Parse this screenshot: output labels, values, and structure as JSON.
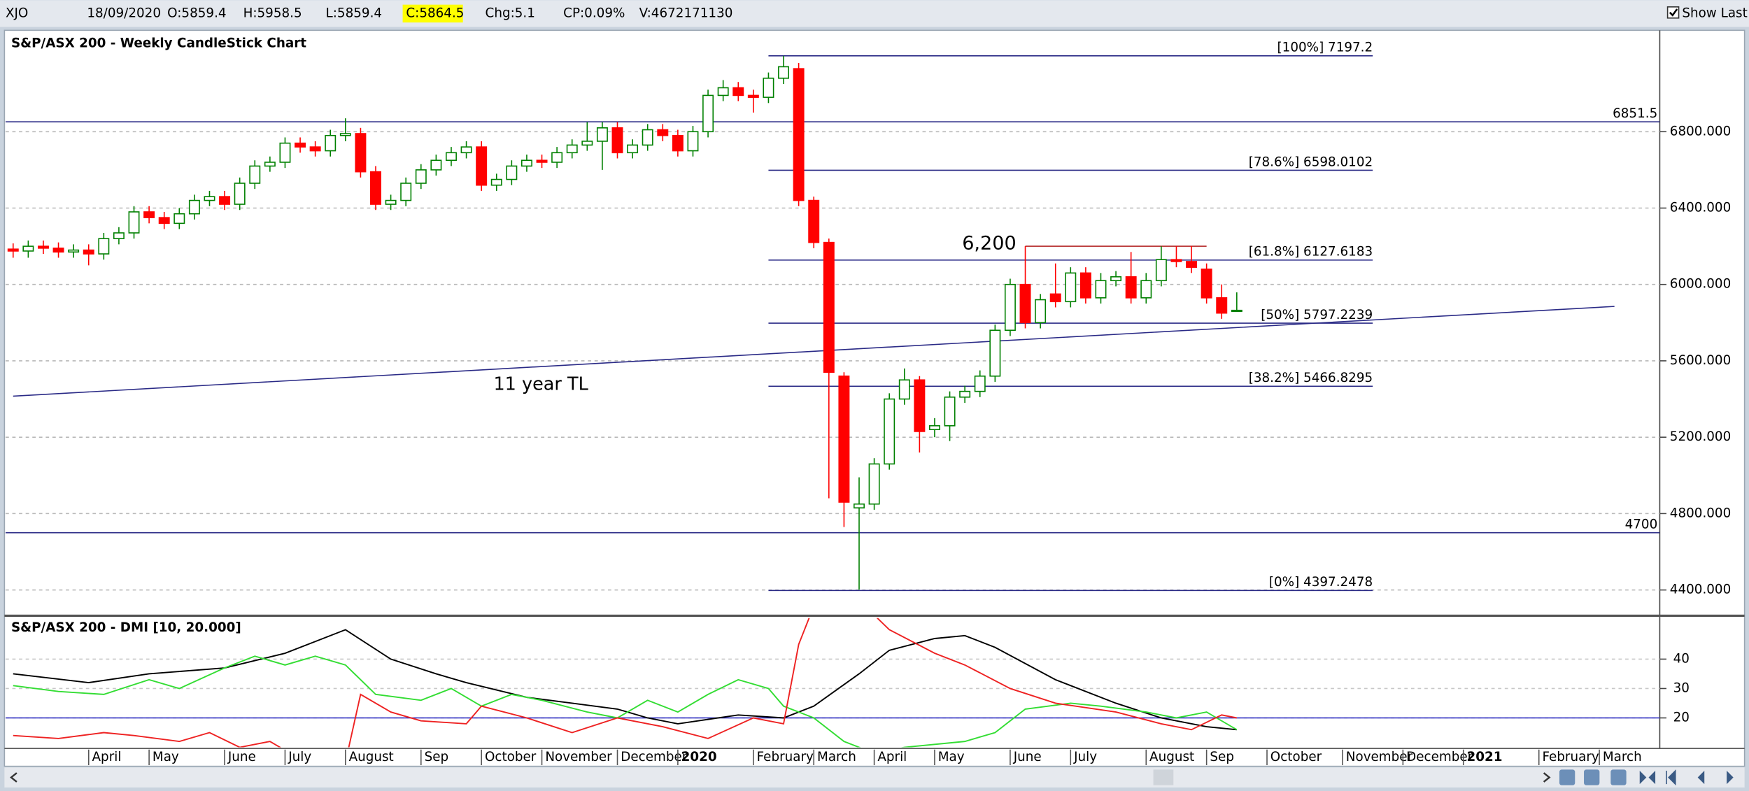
{
  "toolbar": {
    "symbol": "XJO",
    "date": "18/09/2020",
    "open": "O:5859.4",
    "high": "H:5958.5",
    "low": "L:5859.4",
    "close": "C:5864.5",
    "change": "Chg:5.1",
    "change_percent": "CP:0.09%",
    "volume": "V:4672171130",
    "show_last": "Show Last"
  },
  "chart_data": [
    {
      "type": "candlestick",
      "title": "S&P/ASX 200 - Weekly CandleStick Chart",
      "opens": [
        6185,
        6175,
        6200,
        6190,
        6170,
        6180,
        6160,
        6240,
        6270,
        6380,
        6350,
        6320,
        6370,
        6440,
        6460,
        6420,
        6530,
        6620,
        6640,
        6740,
        6720,
        6700,
        6780,
        6790,
        6590,
        6420,
        6440,
        6530,
        6600,
        6650,
        6690,
        6720,
        6520,
        6550,
        6620,
        6650,
        6640,
        6690,
        6730,
        6750,
        6820,
        6690,
        6730,
        6810,
        6780,
        6700,
        6800,
        6990,
        7030,
        6990,
        6980,
        7080,
        7130,
        6440,
        6220,
        5520,
        4830,
        4850,
        5060,
        5400,
        5500,
        5240,
        5260,
        5410,
        5440,
        5520,
        5760,
        6000,
        5800,
        5950,
        5910,
        6060,
        5930,
        6020,
        6040,
        5930,
        6020,
        6130,
        6120,
        6080,
        5930,
        5859.4
      ],
      "highs": [
        6215,
        6230,
        6230,
        6220,
        6210,
        6210,
        6270,
        6300,
        6410,
        6410,
        6380,
        6400,
        6470,
        6490,
        6490,
        6560,
        6650,
        6670,
        6770,
        6770,
        6750,
        6810,
        6870,
        6820,
        6620,
        6470,
        6560,
        6630,
        6680,
        6720,
        6750,
        6750,
        6580,
        6650,
        6680,
        6680,
        6720,
        6760,
        6850,
        6850,
        6850,
        6760,
        6840,
        6840,
        6810,
        6830,
        7020,
        7070,
        7060,
        7020,
        7110,
        7197.2,
        7160,
        6460,
        6240,
        5540,
        4990,
        5090,
        5430,
        5560,
        5520,
        5300,
        5440,
        5470,
        5550,
        5790,
        6030,
        6200,
        5950,
        6110,
        6090,
        6090,
        6060,
        6070,
        6170,
        6060,
        6200,
        6200,
        6200,
        6110,
        6000,
        5958.5
      ],
      "lows": [
        6140,
        6140,
        6160,
        6140,
        6140,
        6100,
        6130,
        6210,
        6240,
        6320,
        6290,
        6290,
        6340,
        6410,
        6390,
        6390,
        6500,
        6590,
        6610,
        6690,
        6670,
        6670,
        6750,
        6560,
        6390,
        6390,
        6410,
        6500,
        6570,
        6620,
        6660,
        6490,
        6490,
        6520,
        6590,
        6610,
        6610,
        6660,
        6700,
        6600,
        6660,
        6660,
        6700,
        6750,
        6670,
        6670,
        6770,
        6960,
        6960,
        6900,
        6950,
        7050,
        6410,
        6190,
        4880,
        4730,
        4402,
        4820,
        5030,
        5370,
        5120,
        5200,
        5180,
        5380,
        5410,
        5490,
        5730,
        5770,
        5770,
        5880,
        5880,
        5900,
        5900,
        5990,
        5900,
        5900,
        5990,
        6090,
        6060,
        5900,
        5820,
        5859.4
      ],
      "closes": [
        6175,
        6200,
        6190,
        6170,
        6180,
        6160,
        6240,
        6270,
        6380,
        6350,
        6320,
        6370,
        6440,
        6460,
        6420,
        6530,
        6620,
        6640,
        6740,
        6720,
        6700,
        6780,
        6790,
        6590,
        6420,
        6440,
        6530,
        6600,
        6650,
        6690,
        6720,
        6520,
        6550,
        6620,
        6650,
        6640,
        6690,
        6730,
        6750,
        6820,
        6690,
        6730,
        6810,
        6780,
        6700,
        6800,
        6990,
        7030,
        6990,
        6980,
        7080,
        7140,
        6440,
        6220,
        5540,
        4860,
        4850,
        5060,
        5400,
        5500,
        5230,
        5260,
        5410,
        5440,
        5520,
        5760,
        6000,
        5800,
        5920,
        5910,
        6060,
        5930,
        6020,
        6040,
        5930,
        6020,
        6130,
        6120,
        6090,
        5930,
        5850,
        5864.5
      ],
      "up_color": "#008000",
      "down_color": "#ff0000",
      "xlim": [
        -0.5,
        109
      ],
      "ylim": [
        4271,
        7325
      ],
      "yticks": [
        {
          "value": 4400,
          "label": "4400.000"
        },
        {
          "value": 4800,
          "label": "4800.000"
        },
        {
          "value": 5200,
          "label": "5200.000"
        },
        {
          "value": 5600,
          "label": "5600.000"
        },
        {
          "value": 6000,
          "label": "6000.000"
        },
        {
          "value": 6400,
          "label": "6400.000"
        },
        {
          "value": 6800,
          "label": "6800.000"
        }
      ],
      "grid": true,
      "horizontal_lines": [
        {
          "value": 6851.5,
          "label": "6851.5"
        },
        {
          "value": 4700,
          "label": "4700"
        }
      ],
      "fibonacci": {
        "x": [
          50,
          90
        ],
        "color": "#2a2a86",
        "levels": [
          {
            "value": 7197.2,
            "label": "[100%] 7197.2"
          },
          {
            "value": 6598.0102,
            "label": "[78.6%] 6598.0102"
          },
          {
            "value": 6127.6183,
            "label": "[61.8%] 6127.6183"
          },
          {
            "value": 5797.2239,
            "label": "[50%] 5797.2239"
          },
          {
            "value": 5466.8295,
            "label": "[38.2%] 5466.8295"
          },
          {
            "value": 4397.2478,
            "label": "[0%] 4397.2478"
          }
        ]
      },
      "resistance": {
        "value": 6200,
        "label": "6,200",
        "x": [
          67,
          79
        ],
        "color": "#b22222"
      },
      "trendline": {
        "label": "11 year TL",
        "x": [
          0,
          106
        ],
        "values": [
          5415,
          5885
        ],
        "color": "#2a2a86"
      }
    },
    {
      "type": "line",
      "title": "S&P/ASX 200 - DMI [10, 20.000]",
      "xlim": [
        -0.5,
        109
      ],
      "ylim": [
        10,
        54
      ],
      "yticks": [
        20,
        30,
        40
      ],
      "grid": true,
      "reference_line": 20,
      "reference_color": "#2020c0",
      "series": [
        {
          "color": "#000000",
          "x": [
            0,
            5,
            9,
            14,
            18,
            20,
            22,
            25,
            28,
            30,
            34,
            37,
            40,
            42,
            44,
            48,
            51,
            53,
            56,
            58,
            61,
            63,
            65,
            69,
            73,
            76,
            79,
            81
          ],
          "values": [
            35,
            32,
            35,
            37,
            42,
            46,
            50,
            40,
            35,
            32,
            27,
            25,
            23,
            20,
            18,
            21,
            20,
            24,
            35,
            43,
            47,
            48,
            44,
            33,
            25,
            20,
            17,
            16
          ]
        },
        {
          "color": "#33dd33",
          "x": [
            0,
            3,
            6,
            9,
            11,
            14,
            16,
            18,
            20,
            22,
            24,
            27,
            29,
            31,
            33,
            35,
            38,
            40,
            42,
            44,
            46,
            48,
            50,
            51,
            53,
            55,
            57,
            59,
            63,
            65,
            67,
            70,
            72,
            75,
            77,
            79,
            81
          ],
          "values": [
            31,
            29,
            28,
            33,
            30,
            37,
            41,
            38,
            41,
            38,
            28,
            26,
            30,
            24,
            28,
            26,
            22,
            20,
            26,
            22,
            28,
            33,
            30,
            24,
            20,
            12,
            8,
            10,
            12,
            15,
            23,
            25,
            24,
            22,
            20,
            22,
            16
          ]
        },
        {
          "color": "#ee2222",
          "x": [
            0,
            3,
            6,
            8,
            11,
            13,
            15,
            17,
            18,
            20,
            22,
            23,
            25,
            27,
            30,
            31,
            34,
            37,
            40,
            43,
            46,
            49,
            51,
            52,
            53,
            54,
            56,
            58,
            61,
            63,
            66,
            69,
            73,
            76,
            78,
            80,
            81
          ],
          "values": [
            14,
            13,
            15,
            14,
            12,
            15,
            10,
            12,
            9,
            5,
            5,
            28,
            22,
            19,
            18,
            24,
            20,
            15,
            20,
            17,
            13,
            20,
            18,
            45,
            58,
            70,
            60,
            50,
            42,
            38,
            30,
            25,
            22,
            18,
            16,
            21,
            20
          ]
        }
      ],
      "xticks": [
        {
          "value": 5,
          "label": "April"
        },
        {
          "value": 9,
          "label": "May"
        },
        {
          "value": 14,
          "label": "June"
        },
        {
          "value": 18,
          "label": "July"
        },
        {
          "value": 22,
          "label": "August"
        },
        {
          "value": 27,
          "label": "Sep"
        },
        {
          "value": 31,
          "label": "October"
        },
        {
          "value": 35,
          "label": "November"
        },
        {
          "value": 40,
          "label": "December"
        },
        {
          "value": 44,
          "label": "2020"
        },
        {
          "value": 49,
          "label": "February"
        },
        {
          "value": 53,
          "label": "March"
        },
        {
          "value": 57,
          "label": "April"
        },
        {
          "value": 61,
          "label": "May"
        },
        {
          "value": 66,
          "label": "June"
        },
        {
          "value": 70,
          "label": "July"
        },
        {
          "value": 75,
          "label": "August"
        },
        {
          "value": 79,
          "label": "Sep"
        },
        {
          "value": 83,
          "label": "October"
        },
        {
          "value": 88,
          "label": "November"
        },
        {
          "value": 92,
          "label": "December"
        },
        {
          "value": 96,
          "label": "2021"
        },
        {
          "value": 101,
          "label": "February"
        },
        {
          "value": 105,
          "label": "March"
        }
      ]
    }
  ]
}
